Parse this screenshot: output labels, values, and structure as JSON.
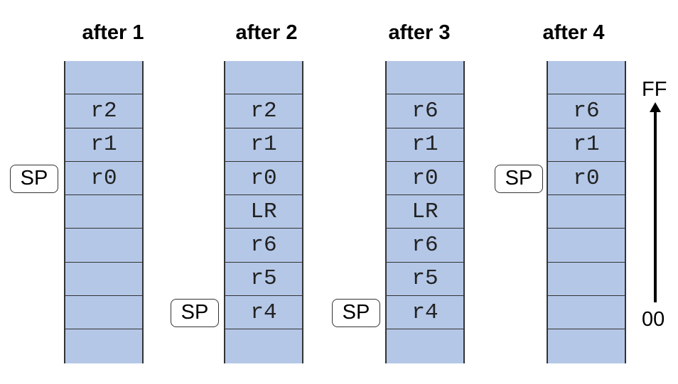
{
  "stacks": [
    {
      "title": "after 1",
      "cells": [
        "",
        "r2",
        "r1",
        "r0",
        "",
        "",
        "",
        "",
        ""
      ],
      "sp_index": 3
    },
    {
      "title": "after 2",
      "cells": [
        "",
        "r2",
        "r1",
        "r0",
        "LR",
        "r6",
        "r5",
        "r4",
        ""
      ],
      "sp_index": 7
    },
    {
      "title": "after 3",
      "cells": [
        "",
        "r6",
        "r1",
        "r0",
        "LR",
        "r6",
        "r5",
        "r4",
        ""
      ],
      "sp_index": 7
    },
    {
      "title": "after 4",
      "cells": [
        "",
        "r6",
        "r1",
        "r0",
        "",
        "",
        "",
        "",
        ""
      ],
      "sp_index": 3
    }
  ],
  "sp_label": "SP",
  "address_top": "FF",
  "address_bottom": "00"
}
